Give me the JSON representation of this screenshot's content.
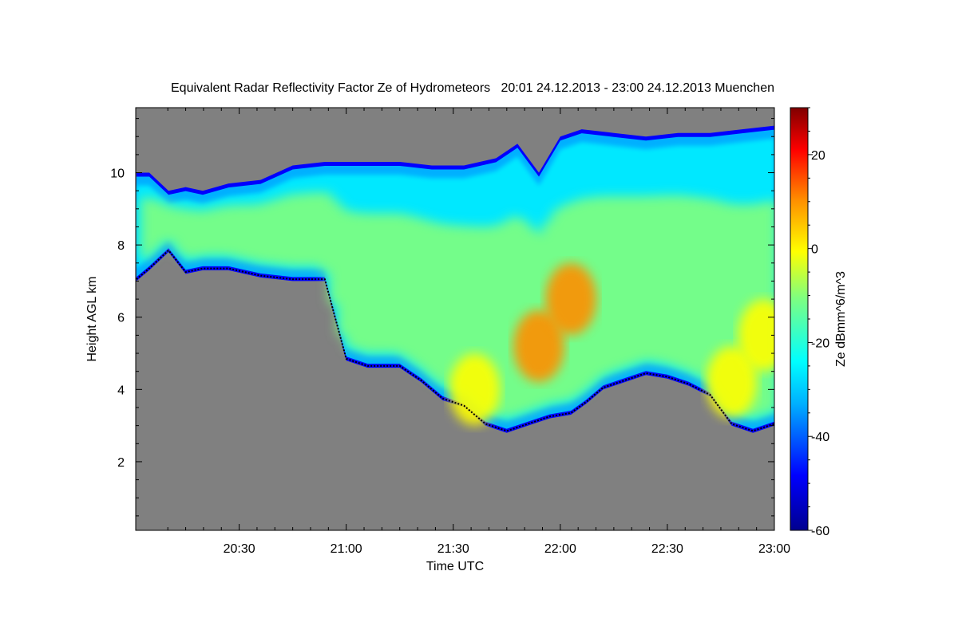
{
  "chart_data": {
    "type": "heatmap",
    "title": "Equivalent Radar Reflectivity Factor Ze of Hydrometeors   20:01 24.12.2013 - 23:00 24.12.2013 Muenchen",
    "xlabel": "Time UTC",
    "ylabel": "Height AGL km",
    "colorbar_label": "Ze dBmm^6/m^3",
    "xlim": [
      "20:01",
      "23:00"
    ],
    "ylim": [
      0.1,
      11.8
    ],
    "x_ticks": [
      "20:30",
      "21:00",
      "21:30",
      "22:00",
      "22:30",
      "23:00"
    ],
    "y_ticks": [
      "2",
      "4",
      "6",
      "8",
      "10"
    ],
    "colorbar_range": [
      -60,
      30
    ],
    "colorbar_ticks": [
      "20",
      "0",
      "-20",
      "-40",
      "-60"
    ],
    "colormap": [
      "#00008f",
      "#0000ff",
      "#00b0ff",
      "#00ffff",
      "#7fff7f",
      "#ffff00",
      "#ff9000",
      "#ff0000",
      "#800000"
    ],
    "background_color": "#808080",
    "cloud_top_km": [
      [
        20.02,
        10.0
      ],
      [
        20.08,
        10.0
      ],
      [
        20.17,
        9.5
      ],
      [
        20.25,
        9.6
      ],
      [
        20.33,
        9.5
      ],
      [
        20.45,
        9.7
      ],
      [
        20.6,
        9.8
      ],
      [
        20.75,
        10.2
      ],
      [
        20.9,
        10.3
      ],
      [
        21.05,
        10.3
      ],
      [
        21.25,
        10.3
      ],
      [
        21.4,
        10.2
      ],
      [
        21.55,
        10.2
      ],
      [
        21.7,
        10.4
      ],
      [
        21.8,
        10.8
      ],
      [
        21.9,
        10.0
      ],
      [
        22.0,
        11.0
      ],
      [
        22.1,
        11.2
      ],
      [
        22.25,
        11.1
      ],
      [
        22.4,
        11.0
      ],
      [
        22.55,
        11.1
      ],
      [
        22.7,
        11.1
      ],
      [
        22.85,
        11.2
      ],
      [
        23.0,
        11.3
      ]
    ],
    "cloud_base_km": [
      [
        20.02,
        7.0
      ],
      [
        20.08,
        7.3
      ],
      [
        20.17,
        7.8
      ],
      [
        20.25,
        7.2
      ],
      [
        20.33,
        7.3
      ],
      [
        20.45,
        7.3
      ],
      [
        20.6,
        7.1
      ],
      [
        20.75,
        7.0
      ],
      [
        20.9,
        7.0
      ],
      [
        21.0,
        4.8
      ],
      [
        21.1,
        4.6
      ],
      [
        21.25,
        4.6
      ],
      [
        21.35,
        4.2
      ],
      [
        21.45,
        3.7
      ],
      [
        21.55,
        3.5
      ],
      [
        21.65,
        3.0
      ],
      [
        21.75,
        2.8
      ],
      [
        21.85,
        3.0
      ],
      [
        21.95,
        3.2
      ],
      [
        22.05,
        3.3
      ],
      [
        22.12,
        3.6
      ],
      [
        22.2,
        4.0
      ],
      [
        22.3,
        4.2
      ],
      [
        22.4,
        4.4
      ],
      [
        22.5,
        4.3
      ],
      [
        22.6,
        4.1
      ],
      [
        22.7,
        3.8
      ],
      [
        22.8,
        3.0
      ],
      [
        22.9,
        2.8
      ],
      [
        23.0,
        3.0
      ]
    ],
    "high_reflectivity_cores": [
      {
        "time": 21.9,
        "height_km": 5.2,
        "ze_dbz": 3
      },
      {
        "time": 22.05,
        "height_km": 6.5,
        "ze_dbz": 5
      },
      {
        "time": 21.6,
        "height_km": 4.0,
        "ze_dbz": 0
      },
      {
        "time": 22.8,
        "height_km": 4.2,
        "ze_dbz": -3
      },
      {
        "time": 22.95,
        "height_km": 5.5,
        "ze_dbz": 0
      }
    ]
  }
}
